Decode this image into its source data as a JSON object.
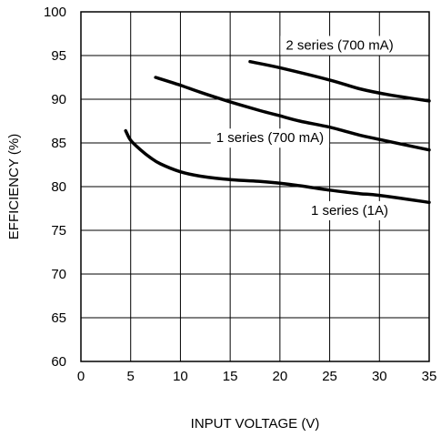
{
  "chart_data": {
    "type": "line",
    "title": "",
    "xlabel": "INPUT VOLTAGE (V)",
    "ylabel": "EFFICIENCY (%)",
    "xlim": [
      0,
      35
    ],
    "ylim": [
      60,
      100
    ],
    "xticks": [
      0,
      5,
      10,
      15,
      20,
      25,
      30,
      35
    ],
    "yticks": [
      60,
      65,
      70,
      75,
      80,
      85,
      90,
      95,
      100
    ],
    "grid": true,
    "legend": "none",
    "series": [
      {
        "name": "2 series (700 mA)",
        "x": [
          17,
          20,
          25,
          28,
          31,
          35
        ],
        "y": [
          94.3,
          93.6,
          92.2,
          91.2,
          90.5,
          89.8
        ]
      },
      {
        "name": "1 series (700 mA)",
        "x": [
          7.5,
          10,
          12,
          15,
          18,
          20,
          22,
          25,
          28,
          30,
          35
        ],
        "y": [
          92.5,
          91.6,
          90.8,
          89.7,
          88.7,
          88.1,
          87.5,
          86.8,
          85.9,
          85.4,
          84.2
        ]
      },
      {
        "name": "1 series (1A)",
        "x": [
          4.5,
          5,
          6,
          7,
          8,
          10,
          12,
          15,
          18,
          20,
          22,
          25,
          28,
          30,
          35
        ],
        "y": [
          86.4,
          85.3,
          84.2,
          83.3,
          82.6,
          81.7,
          81.2,
          80.8,
          80.6,
          80.4,
          80.1,
          79.6,
          79.2,
          79.0,
          78.2
        ]
      }
    ],
    "annotations": [
      {
        "text": "2 series (700 mA)",
        "series": 0,
        "at": [
          26,
          96.2
        ]
      },
      {
        "text": "1 series (700 mA)",
        "series": 1,
        "at": [
          19,
          85.6
        ]
      },
      {
        "text": "1 series (1A)",
        "series": 2,
        "at": [
          27,
          77.3
        ]
      }
    ]
  }
}
